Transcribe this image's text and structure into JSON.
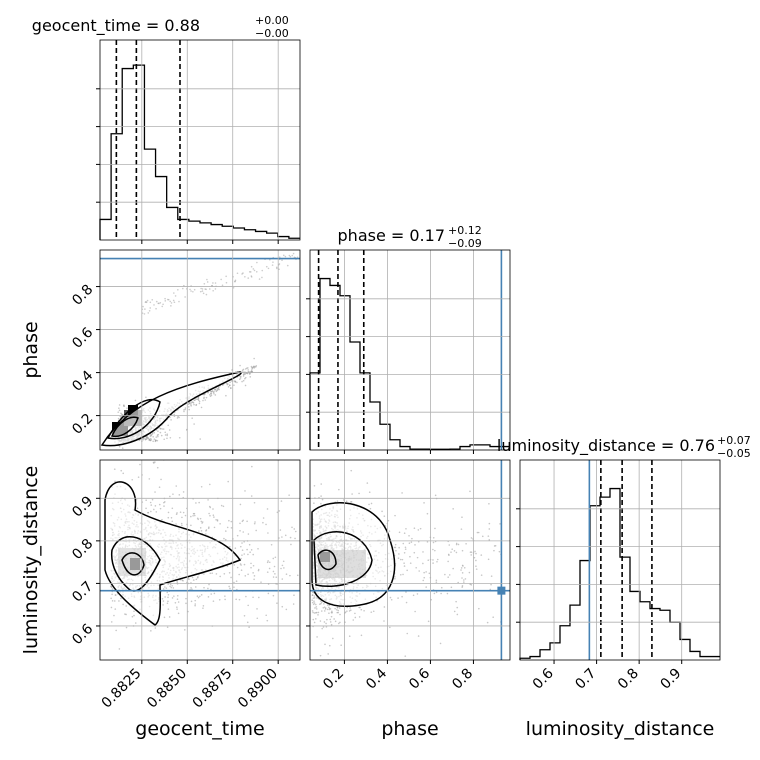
{
  "chart_data": {
    "type": "corner",
    "parameters": [
      "geocent_time",
      "phase",
      "luminosity_distance"
    ],
    "titles": [
      {
        "param": "geocent_time",
        "prefix": "geocent_time = ",
        "median": "0.88",
        "plus": "+0.00",
        "minus": "−0.00"
      },
      {
        "param": "phase",
        "prefix": "phase = ",
        "median": "0.17",
        "plus": "+0.12",
        "minus": "−0.09"
      },
      {
        "param": "luminosity_distance",
        "prefix": "luminosity_distance = ",
        "median": "0.76",
        "plus": "+0.07",
        "minus": "−0.05"
      }
    ],
    "axis_labels": {
      "geocent_time": "geocent_time",
      "phase": "phase",
      "luminosity_distance": "luminosity_distance"
    },
    "ranges": {
      "geocent_time": [
        0.8802,
        0.8912
      ],
      "phase": [
        0.04,
        0.97
      ],
      "luminosity_distance": [
        0.52,
        0.99
      ]
    },
    "ticks": {
      "geocent_time": {
        "values": [
          0.8825,
          0.885,
          0.8875,
          0.89
        ],
        "labels": [
          "0.8825",
          "0.8850",
          "0.8875",
          "0.8900"
        ]
      },
      "phase": {
        "values": [
          0.2,
          0.4,
          0.6,
          0.8
        ],
        "labels": [
          "0.2",
          "0.4",
          "0.6",
          "0.8"
        ]
      },
      "luminosity_distance": {
        "values": [
          0.6,
          0.7,
          0.8,
          0.9
        ],
        "labels": [
          "0.6",
          "0.7",
          "0.8",
          "0.9"
        ]
      }
    },
    "truths": {
      "geocent_time": null,
      "phase": 0.93,
      "luminosity_distance": 0.683
    },
    "quantiles": {
      "geocent_time": [
        0.8811,
        0.8822,
        0.8846
      ],
      "phase": [
        0.08,
        0.17,
        0.29
      ],
      "luminosity_distance": [
        0.71,
        0.76,
        0.83
      ]
    },
    "histograms": {
      "geocent_time": [
        0.12,
        0.62,
        1.0,
        1.02,
        0.53,
        0.37,
        0.19,
        0.12,
        0.11,
        0.1,
        0.09,
        0.08,
        0.07,
        0.06,
        0.05,
        0.04,
        0.02,
        0.01
      ],
      "phase": [
        0.45,
        1.0,
        0.96,
        0.9,
        0.63,
        0.45,
        0.28,
        0.15,
        0.06,
        0.02,
        0.005,
        0.005,
        0.004,
        0.004,
        0.005,
        0.02,
        0.03,
        0.03,
        0.02,
        0.02
      ],
      "luminosity_distance": [
        0.01,
        0.02,
        0.06,
        0.1,
        0.2,
        0.32,
        0.58,
        0.9,
        0.95,
        1.0,
        0.6,
        0.4,
        0.34,
        0.3,
        0.29,
        0.22,
        0.12,
        0.05,
        0.02,
        0.02
      ]
    },
    "grid": true
  }
}
